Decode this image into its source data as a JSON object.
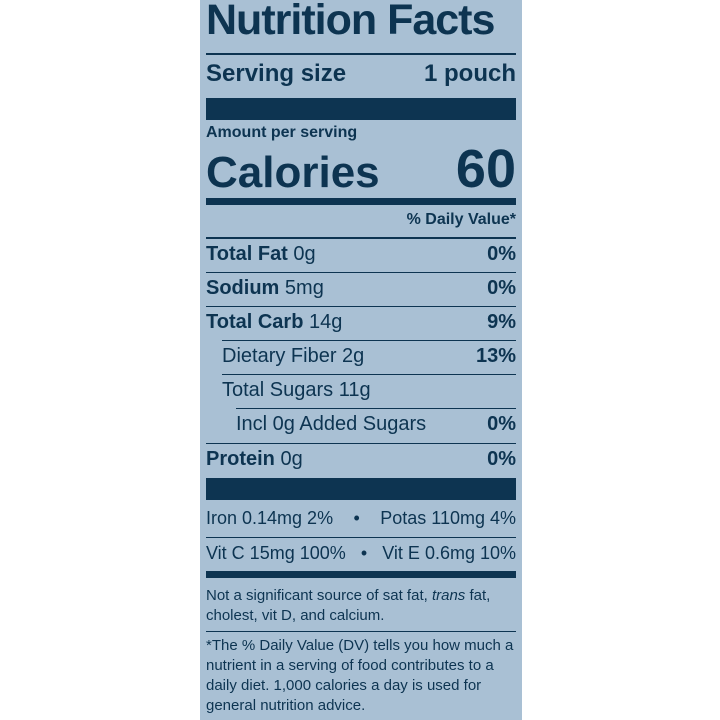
{
  "title": "Nutrition Facts",
  "serving": {
    "label": "Serving size",
    "value": "1 pouch"
  },
  "amount_label": "Amount per serving",
  "calories": {
    "label": "Calories",
    "value": "60"
  },
  "dv_header": "% Daily Value*",
  "nutrients": [
    {
      "name": "Total Fat",
      "amount": "0g",
      "dv": "0%"
    },
    {
      "name": "Sodium",
      "amount": "5mg",
      "dv": "0%"
    },
    {
      "name": "Total Carb",
      "amount": "14g",
      "dv": "9%"
    },
    {
      "name": "Dietary Fiber 2g",
      "dv": "13%"
    },
    {
      "name": "Total Sugars 11g"
    },
    {
      "name": "Incl 0g Added Sugars",
      "dv": "0%"
    },
    {
      "name": "Protein",
      "amount": "0g",
      "dv": "0%"
    }
  ],
  "vitamins": [
    [
      "Iron 0.14mg 2%",
      "Potas 110mg 4%"
    ],
    [
      "Vit C 15mg 100%",
      "Vit E 0.6mg 10%"
    ]
  ],
  "note": [
    "Not a significant source of sat fat, ",
    "trans",
    " fat, cholest, vit D, and calcium."
  ],
  "footnote": "*The % Daily Value (DV) tells you how much a nutrient in a serving of food contributes to a daily diet. 1,000 calories a day is used for general nutrition advice."
}
